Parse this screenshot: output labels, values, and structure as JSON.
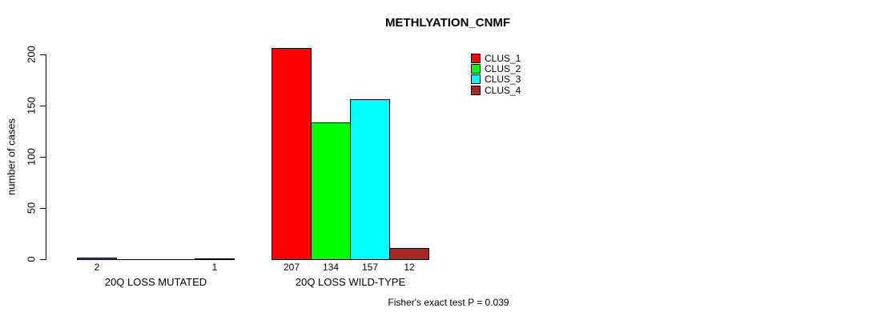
{
  "chart_data": {
    "type": "bar",
    "title": "METHLYATION_CNMF",
    "ylabel": "number of cases",
    "xlabel": "",
    "ylim": [
      0,
      200
    ],
    "yticks": [
      0,
      50,
      100,
      150,
      200
    ],
    "grid": false,
    "legend_position": "top-right",
    "categories": [
      "20Q LOSS MUTATED",
      "20Q LOSS WILD-TYPE"
    ],
    "series": [
      {
        "name": "CLUS_1",
        "color": "#ff0000",
        "values": [
          2,
          207
        ],
        "labels": [
          "2",
          "207"
        ]
      },
      {
        "name": "CLUS_2",
        "color": "#00ff00",
        "values": [
          0,
          134
        ],
        "labels": [
          "",
          "134"
        ]
      },
      {
        "name": "CLUS_3",
        "color": "#00ffff",
        "values": [
          0,
          157
        ],
        "labels": [
          "",
          "157"
        ]
      },
      {
        "name": "CLUS_4",
        "color": "#a52a2a",
        "values": [
          1,
          12
        ],
        "labels": [
          "1",
          "12"
        ]
      }
    ],
    "annotation": "Fisher's exact test P = 0.039",
    "bar_border_color": "#000000",
    "axis_color": "#000000",
    "background_color": "#ffffff"
  }
}
